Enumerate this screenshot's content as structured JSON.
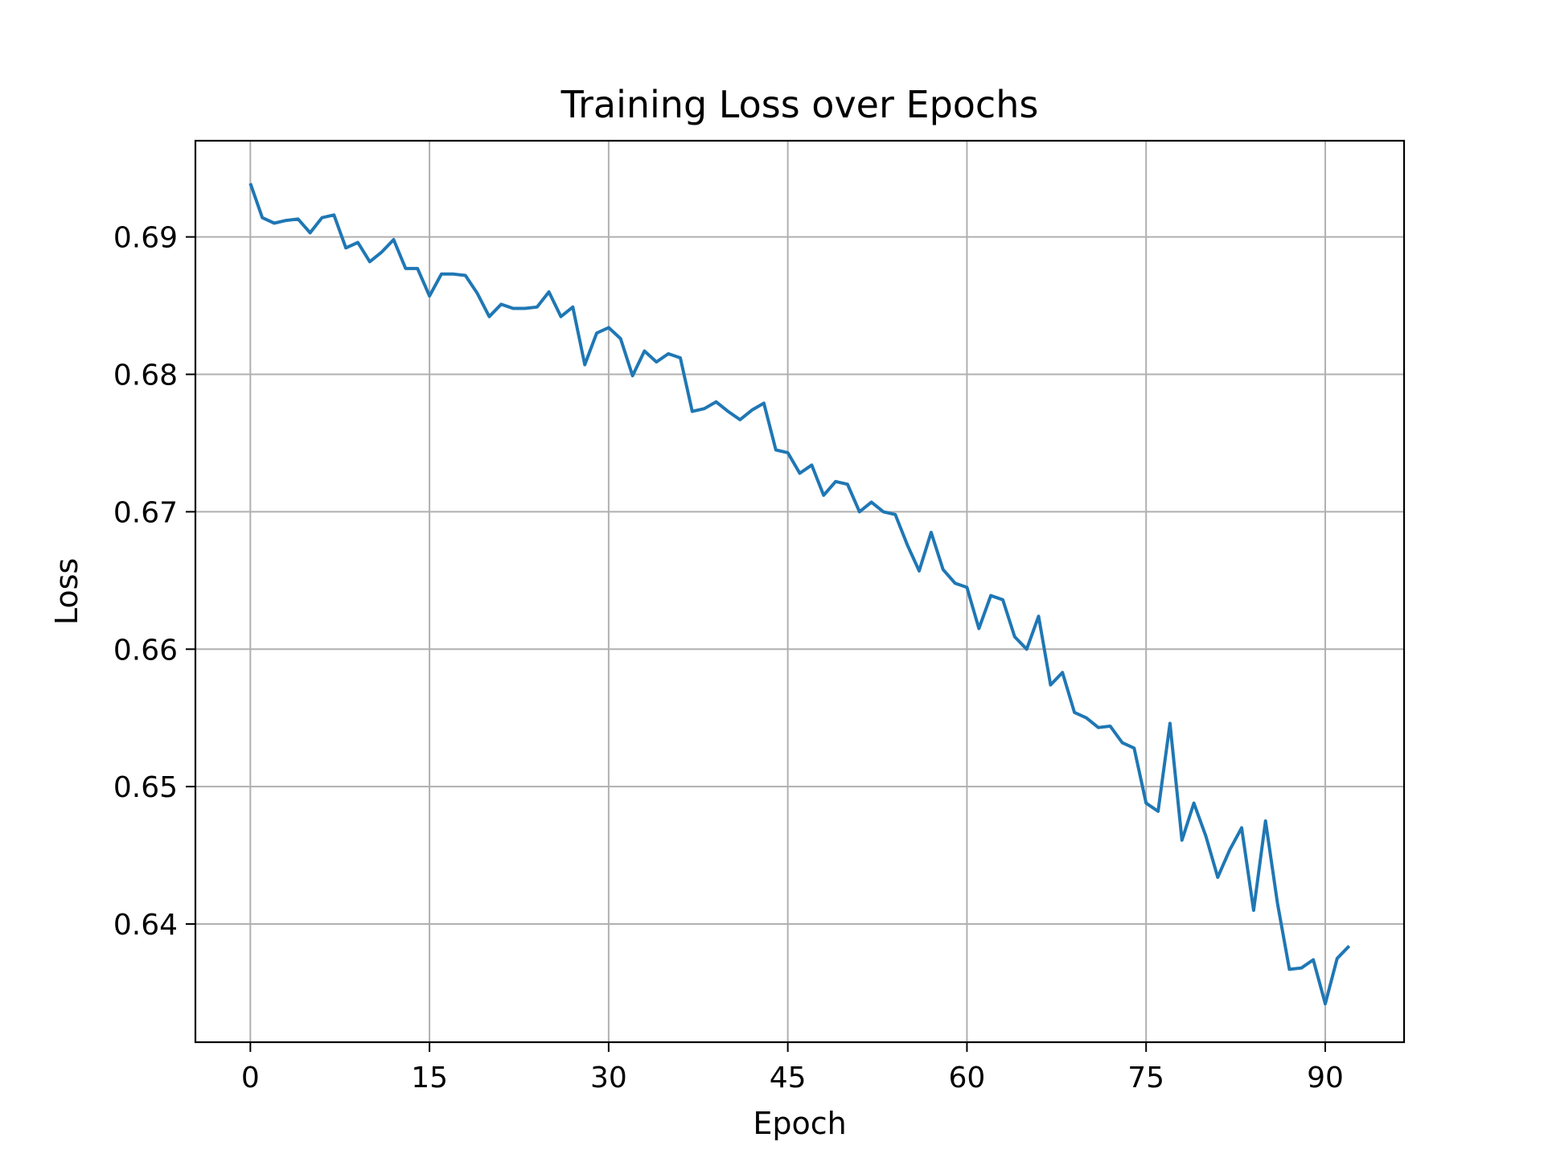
{
  "chart_data": {
    "type": "line",
    "title": "Training Loss over Epochs",
    "xlabel": "Epoch",
    "ylabel": "Loss",
    "xlim": [
      -4.6,
      96.6
    ],
    "ylim": [
      0.6314,
      0.697
    ],
    "x_ticks": [
      0,
      15,
      30,
      45,
      60,
      75,
      90
    ],
    "y_ticks": [
      0.64,
      0.65,
      0.66,
      0.67,
      0.68,
      0.69
    ],
    "y_tick_labels": [
      "0.64",
      "0.65",
      "0.66",
      "0.67",
      "0.68",
      "0.69"
    ],
    "grid": true,
    "series": [
      {
        "color": "#1f77b4",
        "x": [
          0,
          1,
          2,
          3,
          4,
          5,
          6,
          7,
          8,
          9,
          10,
          11,
          12,
          13,
          14,
          15,
          16,
          17,
          18,
          19,
          20,
          21,
          22,
          23,
          24,
          25,
          26,
          27,
          28,
          29,
          30,
          31,
          32,
          33,
          34,
          35,
          36,
          37,
          38,
          39,
          40,
          41,
          42,
          43,
          44,
          45,
          46,
          47,
          48,
          49,
          50,
          51,
          52,
          53,
          54,
          55,
          56,
          57,
          58,
          59,
          60,
          61,
          62,
          63,
          64,
          65,
          66,
          67,
          68,
          69,
          70,
          71,
          72,
          73,
          74,
          75,
          76,
          77,
          78,
          79,
          80,
          81,
          82,
          83,
          84,
          85,
          86,
          87,
          88,
          89,
          90,
          91,
          92
        ],
        "values": [
          0.6939,
          0.6914,
          0.691,
          0.6912,
          0.6913,
          0.6903,
          0.6914,
          0.6916,
          0.6892,
          0.6896,
          0.6882,
          0.6889,
          0.6898,
          0.6877,
          0.6877,
          0.6857,
          0.6873,
          0.6873,
          0.6872,
          0.6859,
          0.6842,
          0.6851,
          0.6848,
          0.6848,
          0.6849,
          0.686,
          0.6842,
          0.6849,
          0.6807,
          0.683,
          0.6834,
          0.6826,
          0.6799,
          0.6817,
          0.6809,
          0.6815,
          0.6812,
          0.6773,
          0.6775,
          0.678,
          0.6773,
          0.6767,
          0.6774,
          0.6779,
          0.6745,
          0.6743,
          0.6728,
          0.6734,
          0.6712,
          0.6722,
          0.672,
          0.67,
          0.6707,
          0.67,
          0.6698,
          0.6676,
          0.6657,
          0.6685,
          0.6658,
          0.6648,
          0.6645,
          0.6615,
          0.6639,
          0.6636,
          0.6609,
          0.66,
          0.6624,
          0.6574,
          0.6583,
          0.6554,
          0.655,
          0.6543,
          0.6544,
          0.6532,
          0.6528,
          0.6488,
          0.6482,
          0.6546,
          0.6461,
          0.6488,
          0.6464,
          0.6434,
          0.6454,
          0.647,
          0.641,
          0.6475,
          0.6415,
          0.6367,
          0.6368,
          0.6374,
          0.6342,
          0.6375,
          0.6384
        ]
      }
    ]
  }
}
